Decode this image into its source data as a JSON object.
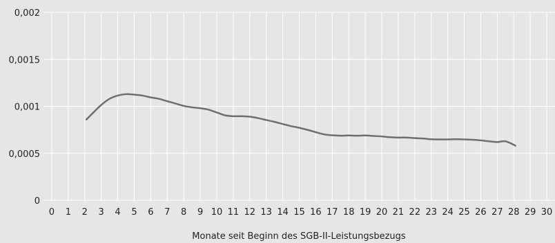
{
  "chart_data": {
    "type": "line",
    "title": "",
    "xlabel": "Monate seit Beginn des SGB-II-Leistungsbezugs",
    "ylabel": "",
    "xlim": [
      -0.5,
      30.5
    ],
    "ylim": [
      0,
      0.002
    ],
    "x_ticks": [
      0,
      1,
      2,
      3,
      4,
      5,
      6,
      7,
      8,
      9,
      10,
      11,
      12,
      13,
      14,
      15,
      16,
      17,
      18,
      19,
      20,
      21,
      22,
      23,
      24,
      25,
      26,
      27,
      28,
      29,
      30
    ],
    "x_tick_labels": [
      "0",
      "1",
      "2",
      "3",
      "4",
      "5",
      "6",
      "7",
      "8",
      "9",
      "10",
      "11",
      "12",
      "13",
      "14",
      "15",
      "16",
      "17",
      "18",
      "19",
      "20",
      "21",
      "22",
      "23",
      "24",
      "25",
      "26",
      "27",
      "28",
      "29",
      "30"
    ],
    "y_ticks": [
      0,
      0.0005,
      0.001,
      0.0015,
      0.002
    ],
    "y_tick_labels": [
      "0",
      "0,0005",
      "0,001",
      "0,0015",
      "0,002"
    ],
    "grid": true,
    "series": [
      {
        "color": "#6e6e6e",
        "x": [
          2.1,
          2.5,
          3,
          3.5,
          4,
          4.5,
          5,
          5.5,
          6,
          6.5,
          7,
          7.5,
          8,
          8.5,
          9,
          9.5,
          10,
          10.5,
          11,
          11.5,
          12,
          12.5,
          13,
          13.5,
          14,
          14.5,
          15,
          15.5,
          16,
          16.5,
          17,
          17.5,
          18,
          18.5,
          19,
          19.5,
          20,
          20.5,
          21,
          21.5,
          22,
          22.5,
          23,
          23.5,
          24,
          24.5,
          25,
          25.5,
          26,
          26.5,
          27,
          27.5,
          28.1
        ],
        "values": [
          0.00086,
          0.00093,
          0.001015,
          0.00108,
          0.001115,
          0.00113,
          0.001125,
          0.001115,
          0.001095,
          0.00108,
          0.001055,
          0.00103,
          0.001005,
          0.00099,
          0.00098,
          0.000965,
          0.000935,
          0.000905,
          0.000895,
          0.000895,
          0.00089,
          0.000875,
          0.000855,
          0.000835,
          0.000812,
          0.00079,
          0.000772,
          0.00075,
          0.000725,
          0.000702,
          0.000692,
          0.000688,
          0.00069,
          0.000688,
          0.00069,
          0.000685,
          0.00068,
          0.000672,
          0.000668,
          0.000668,
          0.000662,
          0.000658,
          0.00065,
          0.000648,
          0.000648,
          0.00065,
          0.000648,
          0.000645,
          0.000638,
          0.000628,
          0.00062,
          0.000628,
          0.000582
        ]
      }
    ]
  }
}
